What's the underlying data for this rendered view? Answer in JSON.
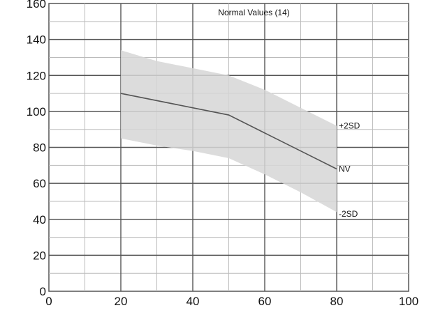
{
  "chart_data": {
    "type": "area",
    "title": "Normal Values (14)",
    "xlabel": "",
    "ylabel": "",
    "xlim": [
      0,
      100
    ],
    "ylim": [
      0,
      160
    ],
    "x_ticks": [
      0,
      20,
      40,
      60,
      80,
      100
    ],
    "y_ticks": [
      0,
      20,
      40,
      60,
      80,
      100,
      120,
      140,
      160
    ],
    "grid": true,
    "series": [
      {
        "name": "+2SD",
        "role": "upper-band",
        "x": [
          20,
          30,
          40,
          50,
          60,
          70,
          80
        ],
        "values": [
          134,
          128,
          124,
          120,
          112,
          102,
          92
        ]
      },
      {
        "name": "NV",
        "role": "line",
        "x": [
          20,
          50,
          60,
          70,
          80
        ],
        "values": [
          110,
          98,
          88,
          78,
          68
        ]
      },
      {
        "name": "-2SD",
        "role": "lower-band",
        "x": [
          20,
          30,
          40,
          50,
          60,
          70,
          80
        ],
        "values": [
          85,
          81,
          78,
          74,
          65,
          55,
          44
        ]
      }
    ],
    "annotations": [
      {
        "text": "+2SD",
        "x": 80,
        "y": 92
      },
      {
        "text": "NV",
        "x": 80,
        "y": 68
      },
      {
        "text": "-2SD",
        "x": 80,
        "y": 43
      }
    ],
    "colors": {
      "band": "#d6d6d6",
      "line": "#555555",
      "grid": "#bbbbbb",
      "grid_major": "#555555"
    }
  }
}
